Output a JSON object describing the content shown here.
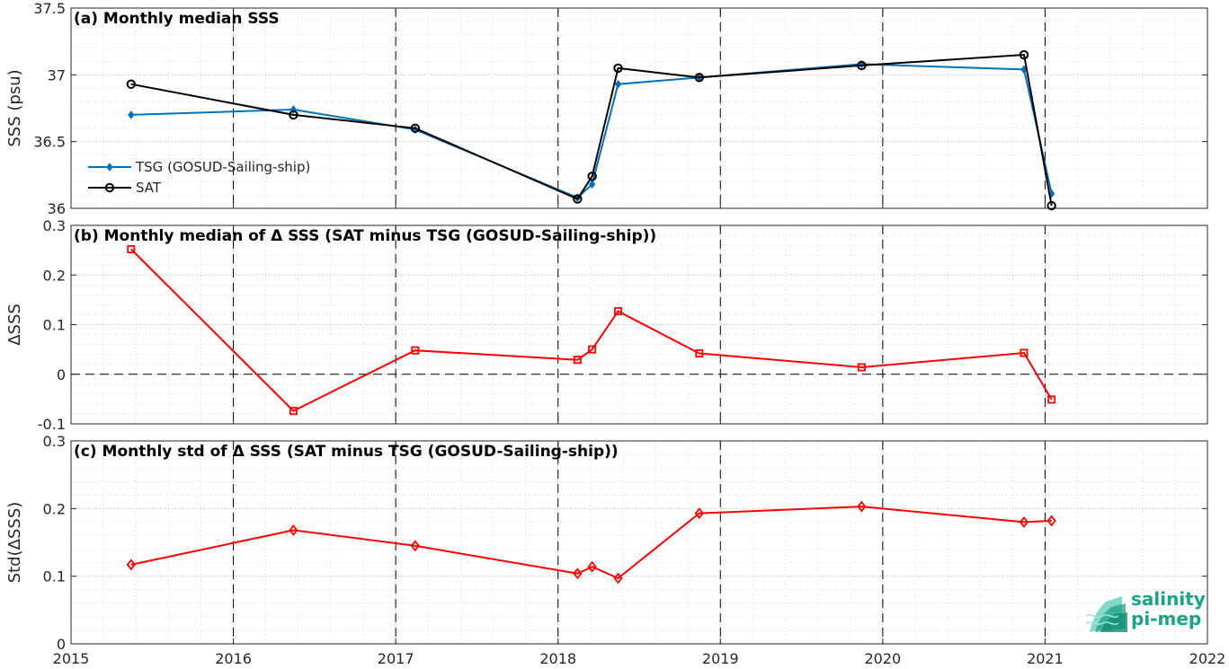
{
  "chart_data": [
    {
      "id": "a",
      "type": "line",
      "title": "(a) Monthly median SSS",
      "ylabel": "SSS (psu)",
      "xlim": [
        2015,
        2022
      ],
      "ylim": [
        36,
        37.5
      ],
      "yticks": [
        36,
        36.5,
        37,
        37.5
      ],
      "ytick_labels": [
        "36",
        "36.5",
        "37",
        "37.5"
      ],
      "legend": "left",
      "series": [
        {
          "name": "TSG (GOSUD-Sailing-ship)",
          "color": "#0072bd",
          "marker": "filled-diamond",
          "x": [
            2015.37,
            2016.37,
            2017.12,
            2018.12,
            2018.21,
            2018.37,
            2018.87,
            2019.87,
            2020.87,
            2021.04
          ],
          "y": [
            36.7,
            36.74,
            36.59,
            36.08,
            36.18,
            36.93,
            36.98,
            37.08,
            37.04,
            36.11
          ]
        },
        {
          "name": "SAT",
          "color": "#000000",
          "marker": "open-circle",
          "x": [
            2015.37,
            2016.37,
            2017.12,
            2018.12,
            2018.21,
            2018.37,
            2018.87,
            2019.87,
            2020.87,
            2021.04
          ],
          "y": [
            36.93,
            36.7,
            36.6,
            36.07,
            36.24,
            37.05,
            36.98,
            37.07,
            37.15,
            36.02
          ]
        }
      ]
    },
    {
      "id": "b",
      "type": "line",
      "title": "(b) Monthly median of Δ SSS (SAT minus TSG (GOSUD-Sailing-ship))",
      "ylabel": "ΔSSS",
      "xlim": [
        2015,
        2022
      ],
      "ylim": [
        -0.1,
        0.3
      ],
      "yticks": [
        -0.1,
        0,
        0.1,
        0.2,
        0.3
      ],
      "ytick_labels": [
        "-0.1",
        "0",
        "0.1",
        "0.2",
        "0.3"
      ],
      "zero_line": true,
      "series": [
        {
          "color": "#ff0000",
          "marker": "open-square",
          "x": [
            2015.37,
            2016.37,
            2017.12,
            2018.12,
            2018.21,
            2018.37,
            2018.87,
            2019.87,
            2020.87,
            2021.04
          ],
          "y": [
            0.252,
            -0.074,
            0.048,
            0.029,
            0.05,
            0.127,
            0.042,
            0.014,
            0.043,
            -0.051
          ]
        }
      ]
    },
    {
      "id": "c",
      "type": "line",
      "title": "(c) Monthly std of Δ SSS (SAT minus TSG (GOSUD-Sailing-ship))",
      "ylabel": "Std(ΔSSS)",
      "xlim": [
        2015,
        2022
      ],
      "ylim": [
        0,
        0.3
      ],
      "yticks": [
        0,
        0.1,
        0.2,
        0.3
      ],
      "ytick_labels": [
        "0",
        "0.1",
        "0.2",
        "0.3"
      ],
      "xticks": [
        2015,
        2016,
        2017,
        2018,
        2019,
        2020,
        2021,
        2022
      ],
      "xtick_labels": [
        "2015",
        "2016",
        "2017",
        "2018",
        "2019",
        "2020",
        "2021",
        "2022"
      ],
      "series": [
        {
          "color": "#ff0000",
          "marker": "open-diamond",
          "x": [
            2015.37,
            2016.37,
            2017.12,
            2018.12,
            2018.21,
            2018.37,
            2018.87,
            2019.87,
            2020.87,
            2021.04
          ],
          "y": [
            0.117,
            0.168,
            0.145,
            0.104,
            0.114,
            0.097,
            0.193,
            0.203,
            0.18,
            0.182
          ]
        }
      ]
    }
  ],
  "vertical_year_lines": [
    2016,
    2017,
    2018,
    2019,
    2020,
    2021
  ],
  "logo": {
    "line1": "salinity",
    "line2": "pi-mep"
  }
}
